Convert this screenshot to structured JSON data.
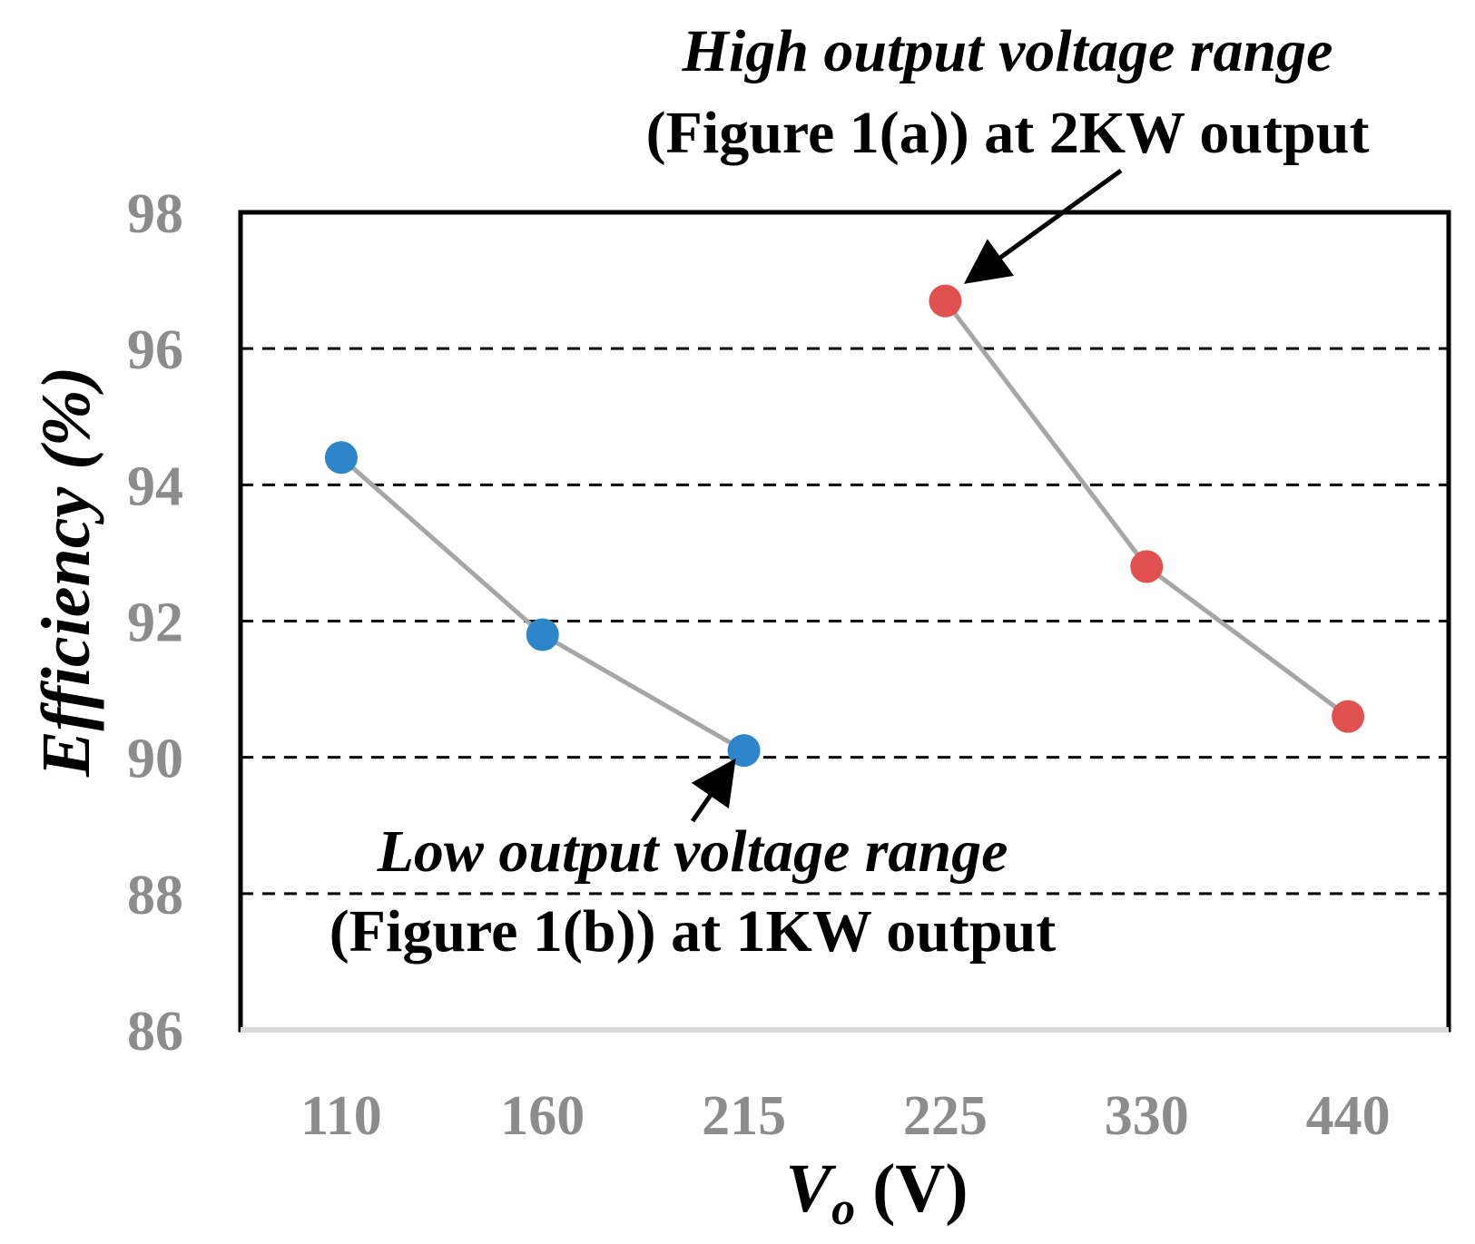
{
  "chart_data": {
    "type": "line",
    "title": "",
    "xlabel_main": "V",
    "xlabel_sub": "o",
    "xlabel_unit": " (V)",
    "ylabel": "Efficiency (%)",
    "ylim": [
      86,
      98
    ],
    "yticks": [
      "86",
      "88",
      "90",
      "92",
      "94",
      "96",
      "98"
    ],
    "categories": [
      "110",
      "160",
      "215",
      "225",
      "330",
      "440"
    ],
    "grid": "dashed horizontal",
    "series": [
      {
        "name": "Low output voltage range",
        "color": "#2e86c8",
        "points": [
          {
            "category": "110",
            "value": 94.4
          },
          {
            "category": "160",
            "value": 91.8
          },
          {
            "category": "215",
            "value": 90.1
          }
        ]
      },
      {
        "name": "High output voltage range",
        "color": "#e0504e",
        "points": [
          {
            "category": "225",
            "value": 96.7
          },
          {
            "category": "330",
            "value": 92.8
          },
          {
            "category": "440",
            "value": 90.6
          }
        ]
      }
    ],
    "line_color": "#a6a6a6",
    "annotations": {
      "high_line1": "High output voltage range",
      "high_line2": "(Figure 1(a)) at 2KW output",
      "low_line1": "Low output voltage range",
      "low_line2": "(Figure 1(b)) at 1KW output"
    }
  }
}
